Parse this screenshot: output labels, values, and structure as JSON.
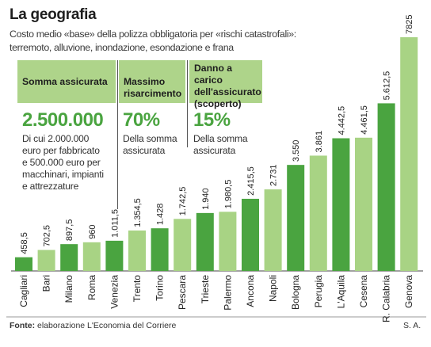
{
  "title": "La geografia",
  "subtitle_line1": "Costo medio «base» della polizza obbligatoria per «rischi catastrofali»:",
  "subtitle_line2": "terremoto, alluvione, inondazione, esondazione e frana",
  "info": [
    {
      "header": "Somma assicurata",
      "value": "2.500.000",
      "description": [
        "Di cui 2.000.000",
        "euro  per fabbricato",
        "e 500.000 euro per",
        "macchinari, impianti",
        "e attrezzature"
      ]
    },
    {
      "header": "Massimo risarcimento",
      "value": "70%",
      "description": [
        "Della somma",
        "assicurata"
      ]
    },
    {
      "header": "Danno a carico dell'assicurato (scoperto)",
      "value": "15%",
      "description": [
        "Della somma",
        "assicurata"
      ]
    }
  ],
  "source_label": "Fonte:",
  "source_text": "elaborazione L'Economia del Corriere",
  "credit": "S. A.",
  "colors": {
    "dark_green": "#4aa440",
    "light_green": "#a8d384",
    "header_bg": "#aed48a"
  },
  "chart_data": {
    "type": "bar",
    "categories": [
      "Cagliari",
      "Bari",
      "Milano",
      "Roma",
      "Venezia",
      "Trento",
      "Torino",
      "Pescara",
      "Trieste",
      "Palermo",
      "Ancona",
      "Napoli",
      "Bologna",
      "Perugia",
      "L'Aquila",
      "Cesena",
      "R. Calabria",
      "Genova"
    ],
    "values": [
      458.5,
      702.5,
      897.5,
      960,
      1011.5,
      1354.5,
      1428,
      1742.5,
      1940,
      1980.5,
      2415.5,
      2731,
      3550,
      3861,
      4442.5,
      4461.5,
      5612.5,
      7825
    ],
    "value_labels": [
      "458,5",
      "702,5",
      "897,5",
      "960",
      "1.011,5",
      "1.354,5",
      "1.428",
      "1.742,5",
      "1.940",
      "1.980,5",
      "2.415,5",
      "2.731",
      "3.550",
      "3.861",
      "4.442,5",
      "4.461,5",
      "5.612,5",
      "7825"
    ],
    "colors": [
      "#4aa440",
      "#a8d384",
      "#4aa440",
      "#a8d384",
      "#4aa440",
      "#a8d384",
      "#4aa440",
      "#a8d384",
      "#4aa440",
      "#a8d384",
      "#4aa440",
      "#a8d384",
      "#4aa440",
      "#a8d384",
      "#4aa440",
      "#a8d384",
      "#4aa440",
      "#a8d384"
    ],
    "ylim": [
      0,
      7825
    ]
  }
}
